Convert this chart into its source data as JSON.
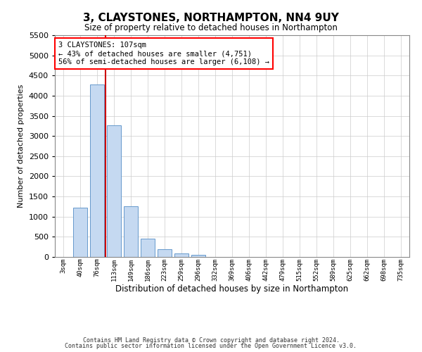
{
  "title": "3, CLAYSTONES, NORTHAMPTON, NN4 9UY",
  "subtitle": "Size of property relative to detached houses in Northampton",
  "xlabel": "Distribution of detached houses by size in Northampton",
  "ylabel": "Number of detached properties",
  "footnote1": "Contains HM Land Registry data © Crown copyright and database right 2024.",
  "footnote2": "Contains public sector information licensed under the Open Government Licence v3.0.",
  "annotation_line1": "3 CLAYSTONES: 107sqm",
  "annotation_line2": "← 43% of detached houses are smaller (4,751)",
  "annotation_line3": "56% of semi-detached houses are larger (6,108) →",
  "bar_color": "#c5d9f1",
  "bar_edge_color": "#6699cc",
  "vline_color": "#cc0000",
  "tick_labels": [
    "3sqm",
    "40sqm",
    "76sqm",
    "113sqm",
    "149sqm",
    "186sqm",
    "223sqm",
    "259sqm",
    "296sqm",
    "332sqm",
    "369sqm",
    "406sqm",
    "442sqm",
    "479sqm",
    "515sqm",
    "552sqm",
    "589sqm",
    "625sqm",
    "662sqm",
    "698sqm",
    "735sqm"
  ],
  "bar_values": [
    0,
    1230,
    4280,
    3260,
    1260,
    460,
    200,
    90,
    60,
    0,
    0,
    0,
    0,
    0,
    0,
    0,
    0,
    0,
    0,
    0,
    0
  ],
  "ylim": [
    0,
    5500
  ],
  "yticks": [
    0,
    500,
    1000,
    1500,
    2000,
    2500,
    3000,
    3500,
    4000,
    4500,
    5000,
    5500
  ],
  "background_color": "#ffffff",
  "grid_color": "#cccccc",
  "vline_x_index": 2.5
}
